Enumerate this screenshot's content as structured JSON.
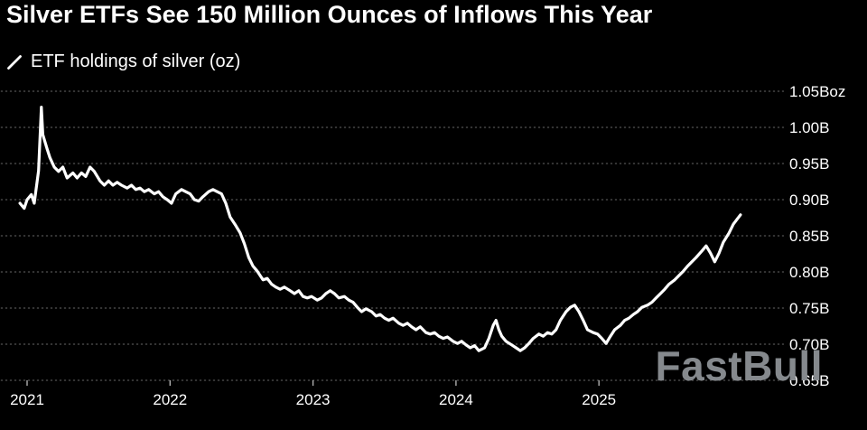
{
  "header": {
    "title": "Silver ETFs See 150 Million Ounces of Inflows This Year"
  },
  "legend": {
    "label": "ETF holdings of silver (oz)"
  },
  "watermark": "FastBull",
  "colors": {
    "background": "#000000",
    "text": "#ffffff",
    "line": "#ffffff",
    "grid": "#484848",
    "watermark": "#85898d"
  },
  "chart_data": {
    "type": "line",
    "title": "Silver ETFs See 150 Million Ounces of Inflows This Year",
    "legend_entries": [
      "ETF holdings of silver (oz)"
    ],
    "unit": "oz",
    "grid": "horizontal-dotted",
    "legend_position": "top-left",
    "x_ticks": [
      2021,
      2022,
      2023,
      2024,
      2025
    ],
    "x_tick_labels": [
      "2021",
      "2022",
      "2023",
      "2024",
      "2025"
    ],
    "xlim": [
      2020.82,
      2026.29
    ],
    "y_ticks": [
      1.05,
      1.0,
      0.95,
      0.9,
      0.85,
      0.8,
      0.75,
      0.7,
      0.65
    ],
    "y_tick_labels": [
      "1.05Boz",
      "1.00B",
      "0.95B",
      "0.90B",
      "0.85B",
      "0.80B",
      "0.75B",
      "0.70B",
      "0.65B"
    ],
    "ylim": [
      0.65,
      1.05
    ],
    "series": [
      {
        "name": "ETF holdings of silver (oz)",
        "color": "#ffffff",
        "x": [
          2020.95,
          2020.98,
          2021.0,
          2021.03,
          2021.05,
          2021.08,
          2021.1,
          2021.11,
          2021.14,
          2021.16,
          2021.19,
          2021.22,
          2021.25,
          2021.28,
          2021.32,
          2021.35,
          2021.38,
          2021.41,
          2021.44,
          2021.47,
          2021.51,
          2021.54,
          2021.57,
          2021.6,
          2021.63,
          2021.66,
          2021.7,
          2021.73,
          2021.76,
          2021.79,
          2021.82,
          2021.85,
          2021.89,
          2021.92,
          2021.95,
          2021.98,
          2022.01,
          2022.04,
          2022.08,
          2022.11,
          2022.14,
          2022.17,
          2022.2,
          2022.23,
          2022.27,
          2022.3,
          2022.33,
          2022.36,
          2022.39,
          2022.42,
          2022.46,
          2022.49,
          2022.52,
          2022.55,
          2022.58,
          2022.61,
          2022.65,
          2022.68,
          2022.71,
          2022.74,
          2022.77,
          2022.8,
          2022.84,
          2022.87,
          2022.9,
          2022.93,
          2022.96,
          2022.99,
          2023.03,
          2023.06,
          2023.09,
          2023.12,
          2023.15,
          2023.18,
          2023.22,
          2023.25,
          2023.28,
          2023.31,
          2023.34,
          2023.37,
          2023.41,
          2023.44,
          2023.47,
          2023.5,
          2023.53,
          2023.56,
          2023.6,
          2023.63,
          2023.66,
          2023.69,
          2023.72,
          2023.75,
          2023.79,
          2023.82,
          2023.85,
          2023.88,
          2023.91,
          2023.94,
          2023.98,
          2024.01,
          2024.04,
          2024.07,
          2024.1,
          2024.13,
          2024.16,
          2024.2,
          2024.23,
          2024.26,
          2024.28,
          2024.3,
          2024.32,
          2024.35,
          2024.39,
          2024.42,
          2024.45,
          2024.48,
          2024.51,
          2024.54,
          2024.58,
          2024.61,
          2024.64,
          2024.67,
          2024.7,
          2024.73,
          2024.77,
          2024.8,
          2024.83,
          2024.86,
          2024.89,
          2024.92,
          2024.96,
          2024.99,
          2025.02,
          2025.05,
          2025.08,
          2025.11,
          2025.15,
          2025.18,
          2025.21,
          2025.24,
          2025.27,
          2025.3,
          2025.34,
          2025.37,
          2025.4,
          2025.43,
          2025.46,
          2025.49,
          2025.53,
          2025.56,
          2025.59,
          2025.62,
          2025.65,
          2025.68,
          2025.72,
          2025.75,
          2025.78,
          2025.81,
          2025.84,
          2025.87,
          2025.91,
          2025.94,
          2025.97,
          2025.99
        ],
        "y": [
          0.895,
          0.888,
          0.9,
          0.907,
          0.895,
          0.94,
          1.028,
          0.99,
          0.97,
          0.958,
          0.945,
          0.939,
          0.945,
          0.93,
          0.937,
          0.93,
          0.937,
          0.932,
          0.945,
          0.939,
          0.926,
          0.92,
          0.926,
          0.92,
          0.924,
          0.92,
          0.916,
          0.92,
          0.914,
          0.916,
          0.911,
          0.914,
          0.908,
          0.911,
          0.904,
          0.9,
          0.895,
          0.908,
          0.914,
          0.911,
          0.908,
          0.9,
          0.898,
          0.904,
          0.911,
          0.914,
          0.911,
          0.908,
          0.895,
          0.876,
          0.864,
          0.854,
          0.839,
          0.82,
          0.808,
          0.801,
          0.789,
          0.791,
          0.783,
          0.779,
          0.776,
          0.779,
          0.774,
          0.77,
          0.774,
          0.766,
          0.764,
          0.766,
          0.761,
          0.764,
          0.77,
          0.774,
          0.77,
          0.764,
          0.766,
          0.761,
          0.758,
          0.751,
          0.745,
          0.749,
          0.745,
          0.739,
          0.741,
          0.736,
          0.733,
          0.736,
          0.729,
          0.726,
          0.729,
          0.724,
          0.72,
          0.724,
          0.716,
          0.714,
          0.716,
          0.711,
          0.708,
          0.71,
          0.704,
          0.701,
          0.704,
          0.699,
          0.695,
          0.698,
          0.691,
          0.695,
          0.708,
          0.726,
          0.733,
          0.72,
          0.711,
          0.704,
          0.699,
          0.695,
          0.691,
          0.695,
          0.701,
          0.708,
          0.714,
          0.711,
          0.716,
          0.714,
          0.72,
          0.733,
          0.745,
          0.751,
          0.754,
          0.745,
          0.733,
          0.72,
          0.716,
          0.714,
          0.708,
          0.701,
          0.711,
          0.72,
          0.726,
          0.733,
          0.736,
          0.741,
          0.745,
          0.751,
          0.754,
          0.758,
          0.764,
          0.77,
          0.776,
          0.783,
          0.789,
          0.795,
          0.801,
          0.808,
          0.814,
          0.82,
          0.829,
          0.836,
          0.826,
          0.814,
          0.826,
          0.841,
          0.854,
          0.866,
          0.874,
          0.879
        ]
      }
    ]
  }
}
